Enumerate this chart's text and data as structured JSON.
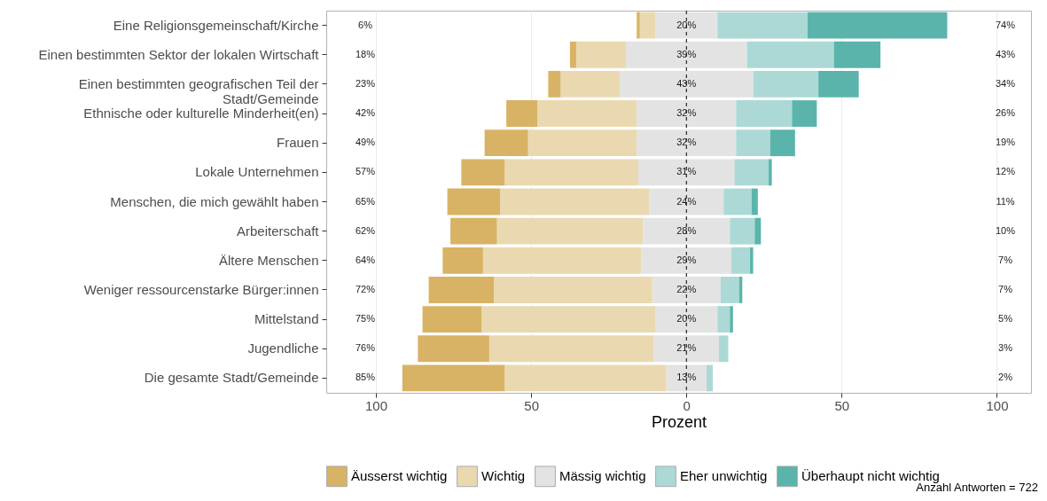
{
  "chart_data": {
    "type": "bar",
    "orientation": "horizontal",
    "stacked": true,
    "categories": [
      "Eine Religionsgemeinschaft/Kirche",
      "Einen bestimmten Sektor der lokalen Wirtschaft",
      "Einen bestimmten geografischen Teil der Stadt/Gemeinde",
      "Ethnische oder kulturelle Minderheit(en)",
      "Frauen",
      "Lokale Unternehmen",
      "Menschen, die mich gewählt haben",
      "Arbeiterschaft",
      "Ältere Menschen",
      "Weniger ressourcenstarke Bürger:innen",
      "Mittelstand",
      "Jugendliche",
      "Die gesamte Stadt/Gemeinde"
    ],
    "series": [
      {
        "name": "Mässig wichtig",
        "color": "#e3e3e3",
        "values": [
          -10,
          -19.5,
          -21.5,
          -16,
          -16,
          -15.5,
          -12,
          -14,
          -14.5,
          -11,
          -10,
          -10.5,
          -6.5
        ]
      },
      {
        "color": "#e3e3e3",
        "values": [
          10,
          19.5,
          21.5,
          16,
          16,
          15.5,
          12,
          14,
          14.5,
          11,
          10,
          10.5,
          6.5
        ]
      },
      {
        "name": "Wichtig",
        "color": "#ead9b0",
        "values": [
          -5,
          -16,
          -19,
          -32,
          -35,
          -43,
          -48,
          -47,
          -51,
          -51,
          -56,
          -53,
          -52
        ]
      },
      {
        "name": "Äusserst wichtig",
        "color": "#d8b365",
        "values": [
          -1,
          -2,
          -4,
          -10,
          -14,
          -14,
          -17,
          -15,
          -13,
          -21,
          -19,
          -23,
          -33
        ]
      },
      {
        "name": "Eher unwichtig",
        "color": "#acd9d5",
        "values": [
          29,
          28,
          21,
          18,
          11,
          11,
          9,
          8,
          6,
          6,
          4,
          3,
          2
        ]
      },
      {
        "name": "Überhaupt nicht wichtig",
        "color": "#5ab4ac",
        "values": [
          45,
          15,
          13,
          8,
          8,
          1,
          2,
          2,
          1,
          1,
          1,
          0,
          0
        ]
      }
    ],
    "xlabel": "Prozent",
    "xlim": [
      -116,
      111
    ],
    "xticks": [
      {
        "value": -100,
        "label": "100"
      },
      {
        "value": -50,
        "label": "50"
      },
      0,
      50,
      100
    ],
    "grid": "x",
    "legend": "bottom",
    "ref_lines": [
      {
        "axis": "x",
        "value": 0,
        "color": "#000000",
        "line_style": "dashed"
      }
    ],
    "annotations": [
      "6%",
      "18%",
      "23%",
      "42%",
      "49%",
      "57%",
      "65%",
      "62%",
      "64%",
      "72%",
      "75%",
      "76%",
      "85%",
      "20%",
      "39%",
      "43%",
      "32%",
      "32%",
      "31%",
      "24%",
      "28%",
      "29%",
      "22%",
      "20%",
      "21%",
      "13%",
      "74%",
      "43%",
      "34%",
      "26%",
      "19%",
      "12%",
      "11%",
      "10%",
      "7%",
      "7%",
      "5%",
      "3%",
      "2%",
      "Anzahl Antworten = 722"
    ]
  }
}
